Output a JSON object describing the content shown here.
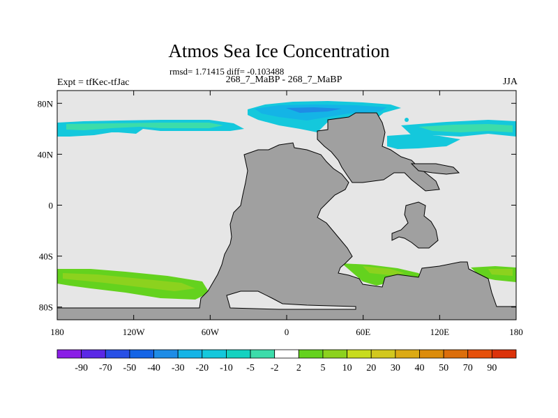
{
  "header": {
    "title": "Atmos Sea Ice Concentration",
    "subtitle": "rmsd= 1.71415 diff= -0.103488",
    "left_label": "Expt = tfKec-tfJac",
    "center_label": "268_7_MaBP - 268_7_MaBP",
    "right_label": "JJA"
  },
  "axes": {
    "y_ticks": [
      "80N",
      "40N",
      "0",
      "40S",
      "80S"
    ],
    "y_values": [
      80,
      40,
      0,
      -40,
      -80
    ],
    "x_ticks": [
      "180",
      "120W",
      "60W",
      "0",
      "60E",
      "120E",
      "180"
    ],
    "x_values": [
      -180,
      -120,
      -60,
      0,
      60,
      120,
      180
    ],
    "lon_range": [
      -180,
      180
    ],
    "lat_range": [
      -90,
      90
    ]
  },
  "colors": {
    "ocean": "#e6e6e6",
    "land": "#a0a0a0",
    "coast": "#000000"
  },
  "colorbar": {
    "labels": [
      "-90",
      "-70",
      "-50",
      "-40",
      "-30",
      "-20",
      "-10",
      "-5",
      "-2",
      "2",
      "5",
      "10",
      "20",
      "30",
      "40",
      "50",
      "70",
      "90"
    ],
    "colors": [
      "#8a1ee6",
      "#5a28e6",
      "#2850e6",
      "#1464e6",
      "#1e8ce6",
      "#14b4e6",
      "#14c8dc",
      "#14d2c0",
      "#3cdcaa",
      "#ffffff",
      "#64d21e",
      "#8cd21e",
      "#c8dc1e",
      "#d2c81e",
      "#dcaa14",
      "#dc8c0a",
      "#dc6e0a",
      "#e6500a",
      "#dc320a"
    ]
  }
}
